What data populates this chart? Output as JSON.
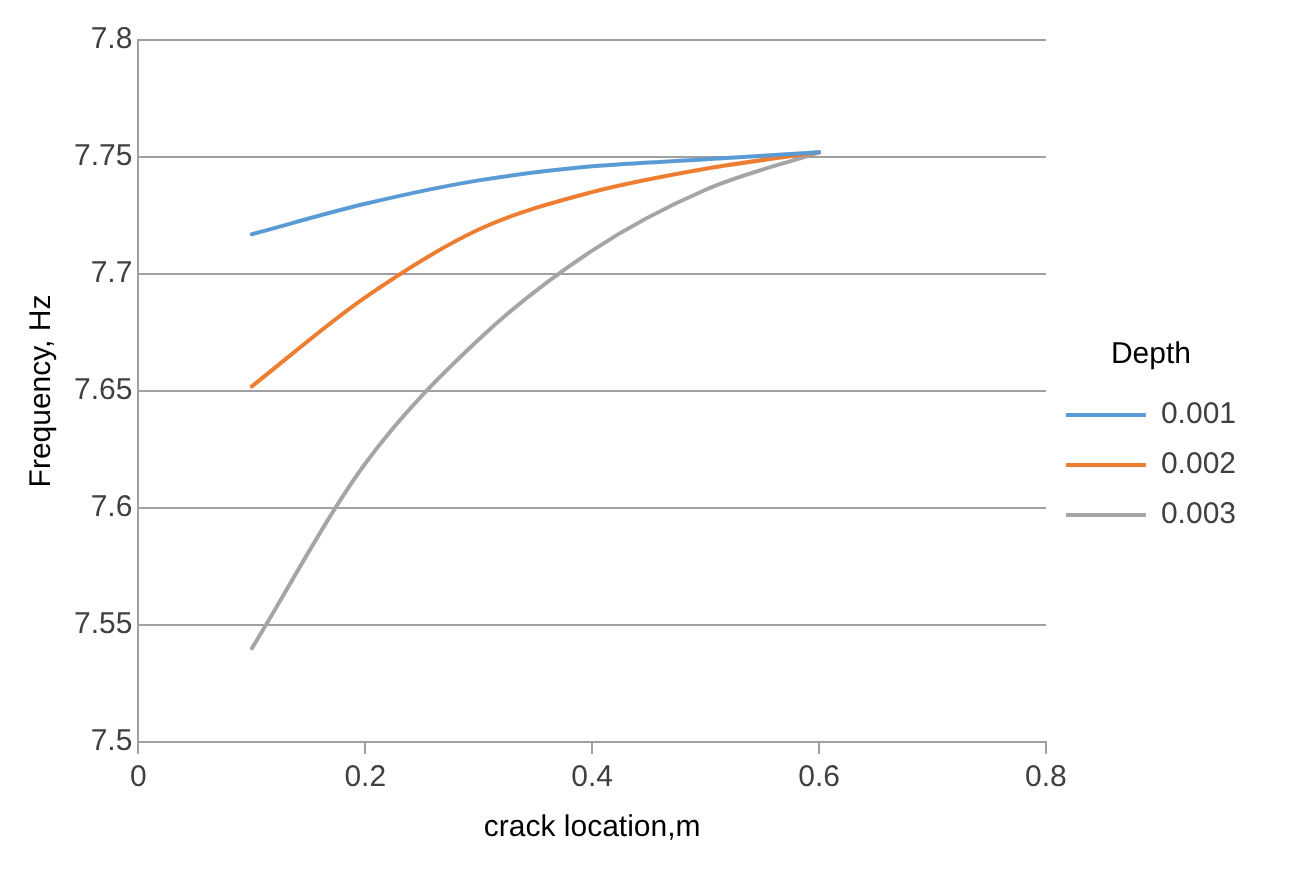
{
  "chart_data": {
    "type": "line",
    "xlabel": "crack location,m",
    "ylabel": "Frequency, Hz",
    "legend_title": "Depth",
    "legend": "right",
    "grid": "y",
    "marker": "none",
    "line_style": "solid",
    "x": [
      0.1,
      0.2,
      0.3,
      0.4,
      0.5,
      0.6
    ],
    "series": [
      {
        "name": "0.001",
        "color": "#5b9bd5",
        "values": [
          7.717,
          7.73,
          7.74,
          7.746,
          7.749,
          7.752
        ]
      },
      {
        "name": "0.002",
        "color": "#ed7d31",
        "values": [
          7.652,
          7.69,
          7.719,
          7.735,
          7.745,
          7.752
        ]
      },
      {
        "name": "0.003",
        "color": "#a5a5a5",
        "values": [
          7.54,
          7.619,
          7.672,
          7.71,
          7.736,
          7.752
        ]
      }
    ],
    "xlim": [
      0,
      0.8
    ],
    "xticks": [
      0,
      0.2,
      0.4,
      0.6,
      0.8
    ],
    "ylim": [
      7.5,
      7.8
    ],
    "yticks": [
      7.5,
      7.55,
      7.6,
      7.65,
      7.7,
      7.75,
      7.8
    ]
  }
}
